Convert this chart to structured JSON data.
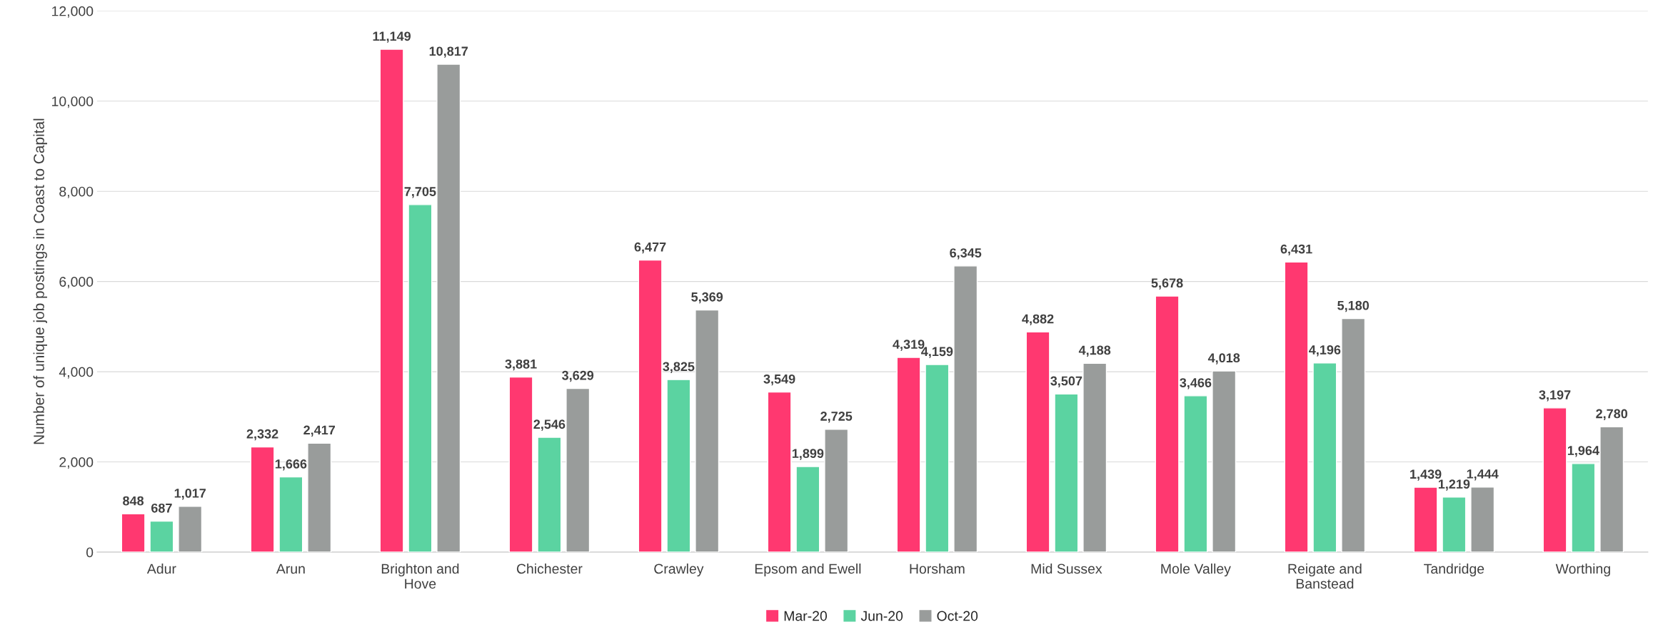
{
  "chart_data": {
    "type": "bar",
    "ylabel": "Number of unique job postings in Coast to Capital",
    "categories": [
      "Adur",
      "Arun",
      "Brighton and\nHove",
      "Chichester",
      "Crawley",
      "Epsom and Ewell",
      "Horsham",
      "Mid Sussex",
      "Mole Valley",
      "Reigate and\nBanstead",
      "Tandridge",
      "Worthing"
    ],
    "series": [
      {
        "name": "Mar-20",
        "color": "#ff3870",
        "values": [
          848,
          2332,
          11149,
          3881,
          6477,
          3549,
          4319,
          4882,
          5678,
          6431,
          1439,
          3197
        ],
        "value_labels": [
          "848",
          "2,332",
          "11,149",
          "3,881",
          "6,477",
          "3,549",
          "4,319",
          "4,882",
          "5,678",
          "6,431",
          "1,439",
          "3,197"
        ]
      },
      {
        "name": "Jun-20",
        "color": "#5bd3a1",
        "values": [
          687,
          1666,
          7705,
          2546,
          3825,
          1899,
          4159,
          3507,
          3466,
          4196,
          1219,
          1964
        ],
        "value_labels": [
          "687",
          "1,666",
          "7,705",
          "2,546",
          "3,825",
          "1,899",
          "4,159",
          "3,507",
          "3,466",
          "4,196",
          "1,219",
          "1,964"
        ]
      },
      {
        "name": "Oct-20",
        "color": "#999c9b",
        "values": [
          1017,
          2417,
          10817,
          3629,
          5369,
          2725,
          6345,
          4188,
          4018,
          5180,
          1444,
          2780
        ],
        "value_labels": [
          "1,017",
          "2,417",
          "10,817",
          "3,629",
          "5,369",
          "2,725",
          "6,345",
          "4,188",
          "4,018",
          "5,180",
          "1,444",
          "2,780"
        ]
      }
    ],
    "ylim": [
      0,
      12000
    ],
    "yticks": [
      {
        "value": 0,
        "label": "0"
      },
      {
        "value": 2000,
        "label": "2,000"
      },
      {
        "value": 4000,
        "label": "4,000"
      },
      {
        "value": 6000,
        "label": "6,000"
      },
      {
        "value": 8000,
        "label": "8,000"
      },
      {
        "value": 10000,
        "label": "10,000"
      },
      {
        "value": 12000,
        "label": "12,000"
      }
    ],
    "grid": "y",
    "legend": "bottom"
  }
}
